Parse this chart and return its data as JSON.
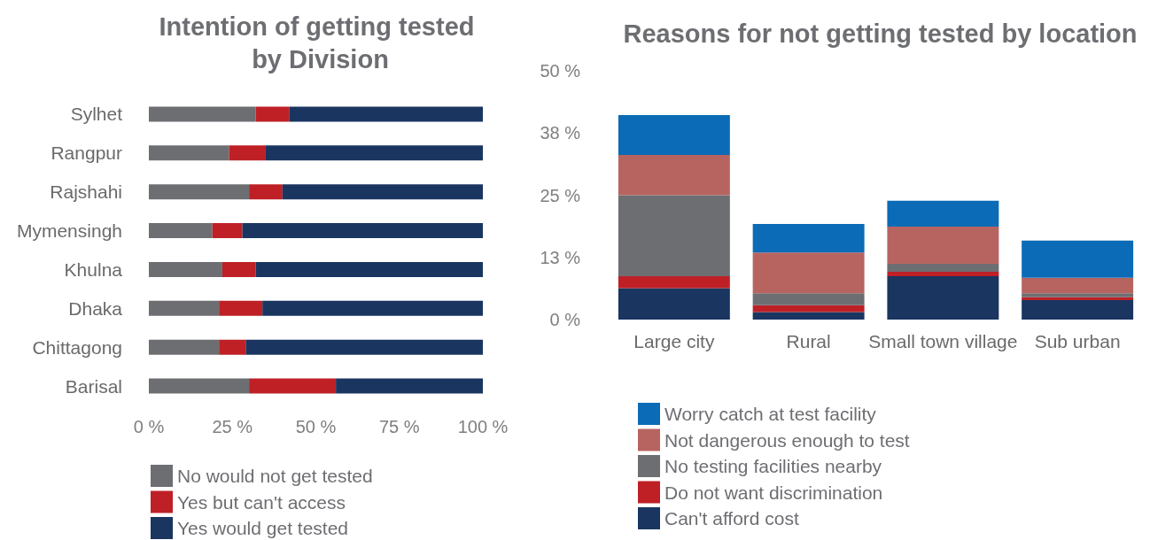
{
  "chart_data": [
    {
      "type": "bar",
      "orientation": "horizontal",
      "stacked": true,
      "title": "Intention of getting tested by Division",
      "categories": [
        "Sylhet",
        "Rangpur",
        "Rajshahi",
        "Mymensingh",
        "Khulna",
        "Dhaka",
        "Chittagong",
        "Barisal"
      ],
      "series": [
        {
          "name": "No would not get tested",
          "color": "#6d6e72",
          "values": [
            32,
            24,
            30,
            19,
            22,
            21,
            21,
            30
          ]
        },
        {
          "name": "Yes but can't access",
          "color": "#be2026",
          "values": [
            10,
            11,
            10,
            9,
            10,
            13,
            8,
            26
          ]
        },
        {
          "name": "Yes would get tested",
          "color": "#1a3560",
          "values": [
            58,
            65,
            60,
            72,
            68,
            66,
            71,
            44
          ]
        }
      ],
      "xlim": [
        0,
        100
      ],
      "xticks": [
        {
          "value": 0,
          "label": "0 %"
        },
        {
          "value": 25,
          "label": "25 %"
        },
        {
          "value": 50,
          "label": "50 %"
        },
        {
          "value": 75,
          "label": "75 %"
        },
        {
          "value": 100,
          "label": "100 %"
        }
      ],
      "grid": false,
      "legend": "bottom"
    },
    {
      "type": "bar",
      "stacked": true,
      "title": "Reasons for not getting tested by location",
      "categories": [
        "Large city",
        "Rural",
        "Small town village",
        "Sub urban"
      ],
      "series": [
        {
          "name": "Can't afford cost",
          "color": "#1a3560",
          "values": [
            6.3,
            1.5,
            8.7,
            3.9
          ]
        },
        {
          "name": "Do not want discrimination",
          "color": "#be2026",
          "values": [
            2.4,
            1.4,
            0.9,
            0.6
          ]
        },
        {
          "name": "No testing facilities nearby",
          "color": "#6d6e72",
          "values": [
            16.3,
            2.4,
            1.6,
            0.8
          ]
        },
        {
          "name": "Not dangerous enough to test",
          "color": "#b76461",
          "values": [
            8.1,
            8.2,
            7.5,
            3.1
          ]
        },
        {
          "name": "Worry catch at test facility",
          "color": "#0b6bb7",
          "values": [
            8.0,
            5.7,
            5.2,
            7.5
          ]
        }
      ],
      "ylim": [
        0,
        50
      ],
      "yticks": [
        {
          "value": 0,
          "label": "0 %"
        },
        {
          "value": 12.5,
          "label": "13 %"
        },
        {
          "value": 25,
          "label": "25 %"
        },
        {
          "value": 37.5,
          "label": "38 %"
        },
        {
          "value": 50,
          "label": "50 %"
        }
      ],
      "grid": false,
      "legend": "bottom"
    }
  ]
}
